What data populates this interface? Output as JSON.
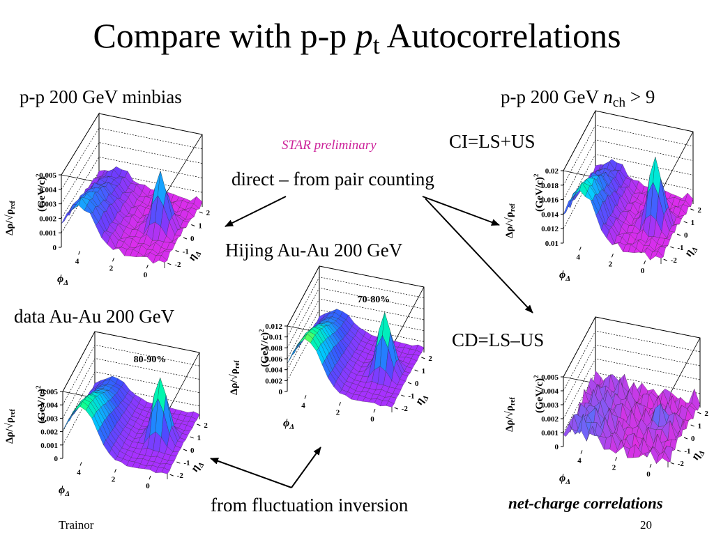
{
  "slide": {
    "title_main": "Compare with p-p ",
    "title_var": "p",
    "title_sub": "t",
    "title_end": " Autocorrelations",
    "page_number": "20",
    "author": "Trainor"
  },
  "labels": {
    "pp_minbias": "p-p 200 GeV minbias",
    "pp_nch_prefix": "p-p 200 GeV ",
    "pp_nch_var": "n",
    "pp_nch_sub": "ch",
    "pp_nch_suffix": " > 9",
    "ci": "CI=LS+US",
    "cd": "CD=LS–US",
    "star_prelim": "STAR preliminary",
    "direct": "direct – from pair counting",
    "hijing": "Hijing Au-Au 200 GeV",
    "data_auau": "data Au-Au 200 GeV",
    "fluct": "from fluctuation inversion",
    "netcharge": "net-charge correlations"
  },
  "colors": {
    "star_prelim": "#cc2299",
    "surface_low": "#ff1fd0",
    "surface_high": "#ff0000"
  },
  "chart_data": [
    {
      "id": "pp-minbias",
      "type": "surface3d",
      "ylabel": "Δρ/√ρ",
      "ylabel_sub": "ref",
      "yunit": "(GeV/c)",
      "yunit_sup": "2",
      "xlabel": "ϕ",
      "xlabel_sub": "Δ",
      "zlabel": "η",
      "zlabel_sub": "Δ",
      "zticks": [
        "0",
        "0.001",
        "0.002",
        "0.003",
        "0.004",
        "0.005"
      ],
      "phi_ticks": [
        "4",
        "2",
        "0"
      ],
      "eta_ticks": [
        "2",
        "1",
        "0",
        "-1",
        "-2"
      ],
      "ylim": [
        0,
        0.005
      ],
      "centrality": ""
    },
    {
      "id": "pp-nch9",
      "type": "surface3d",
      "ylabel": "Δρ/√ρ",
      "ylabel_sub": "ref",
      "yunit": "(GeV/c)",
      "yunit_sup": "2",
      "xlabel": "ϕ",
      "xlabel_sub": "Δ",
      "zlabel": "η",
      "zlabel_sub": "Δ",
      "zticks": [
        "0.01",
        "0.012",
        "0.014",
        "0.016",
        "0.018",
        "0.02"
      ],
      "phi_ticks": [
        "4",
        "2",
        "0"
      ],
      "eta_ticks": [
        "2",
        "1",
        "0",
        "-1",
        "-2"
      ],
      "ylim": [
        0.01,
        0.02
      ],
      "centrality": ""
    },
    {
      "id": "hijing-70-80",
      "type": "surface3d",
      "ylabel": "Δρ/√ρ",
      "ylabel_sub": "ref",
      "yunit": "(GeV/c)",
      "yunit_sup": "2",
      "xlabel": "ϕ",
      "xlabel_sub": "Δ",
      "zlabel": "η",
      "zlabel_sub": "Δ",
      "zticks": [
        "0",
        "0.002",
        "0.004",
        "0.006",
        "0.008",
        "0.01",
        "0.012"
      ],
      "phi_ticks": [
        "4",
        "2",
        "0"
      ],
      "eta_ticks": [
        "2",
        "1",
        "0",
        "-1",
        "-2"
      ],
      "ylim": [
        0,
        0.012
      ],
      "centrality": "70-80%"
    },
    {
      "id": "data-80-90",
      "type": "surface3d",
      "ylabel": "Δρ/√ρ",
      "ylabel_sub": "ref",
      "yunit": "(GeV/c)",
      "yunit_sup": "2",
      "xlabel": "ϕ",
      "xlabel_sub": "Δ",
      "zlabel": "η",
      "zlabel_sub": "Δ",
      "zticks": [
        "0",
        "0.001",
        "0.002",
        "0.003",
        "0.004",
        "0.005"
      ],
      "phi_ticks": [
        "4",
        "2",
        "0"
      ],
      "eta_ticks": [
        "2",
        "1",
        "0",
        "-1",
        "-2"
      ],
      "ylim": [
        0,
        0.005
      ],
      "centrality": "80-90%"
    },
    {
      "id": "cd-netcharge",
      "type": "surface3d",
      "ylabel": "Δρ/√ρ",
      "ylabel_sub": "ref",
      "yunit": "(GeV/c)",
      "yunit_sup": "2",
      "xlabel": "ϕ",
      "xlabel_sub": "Δ",
      "zlabel": "η",
      "zlabel_sub": "Δ",
      "zticks": [
        "0",
        "0.001",
        "0.002",
        "0.003",
        "0.004",
        "0.005"
      ],
      "phi_ticks": [
        "4",
        "2",
        "0"
      ],
      "eta_ticks": [
        "2",
        "1",
        "0",
        "-1",
        "-2"
      ],
      "ylim": [
        0,
        0.005
      ],
      "centrality": ""
    }
  ]
}
